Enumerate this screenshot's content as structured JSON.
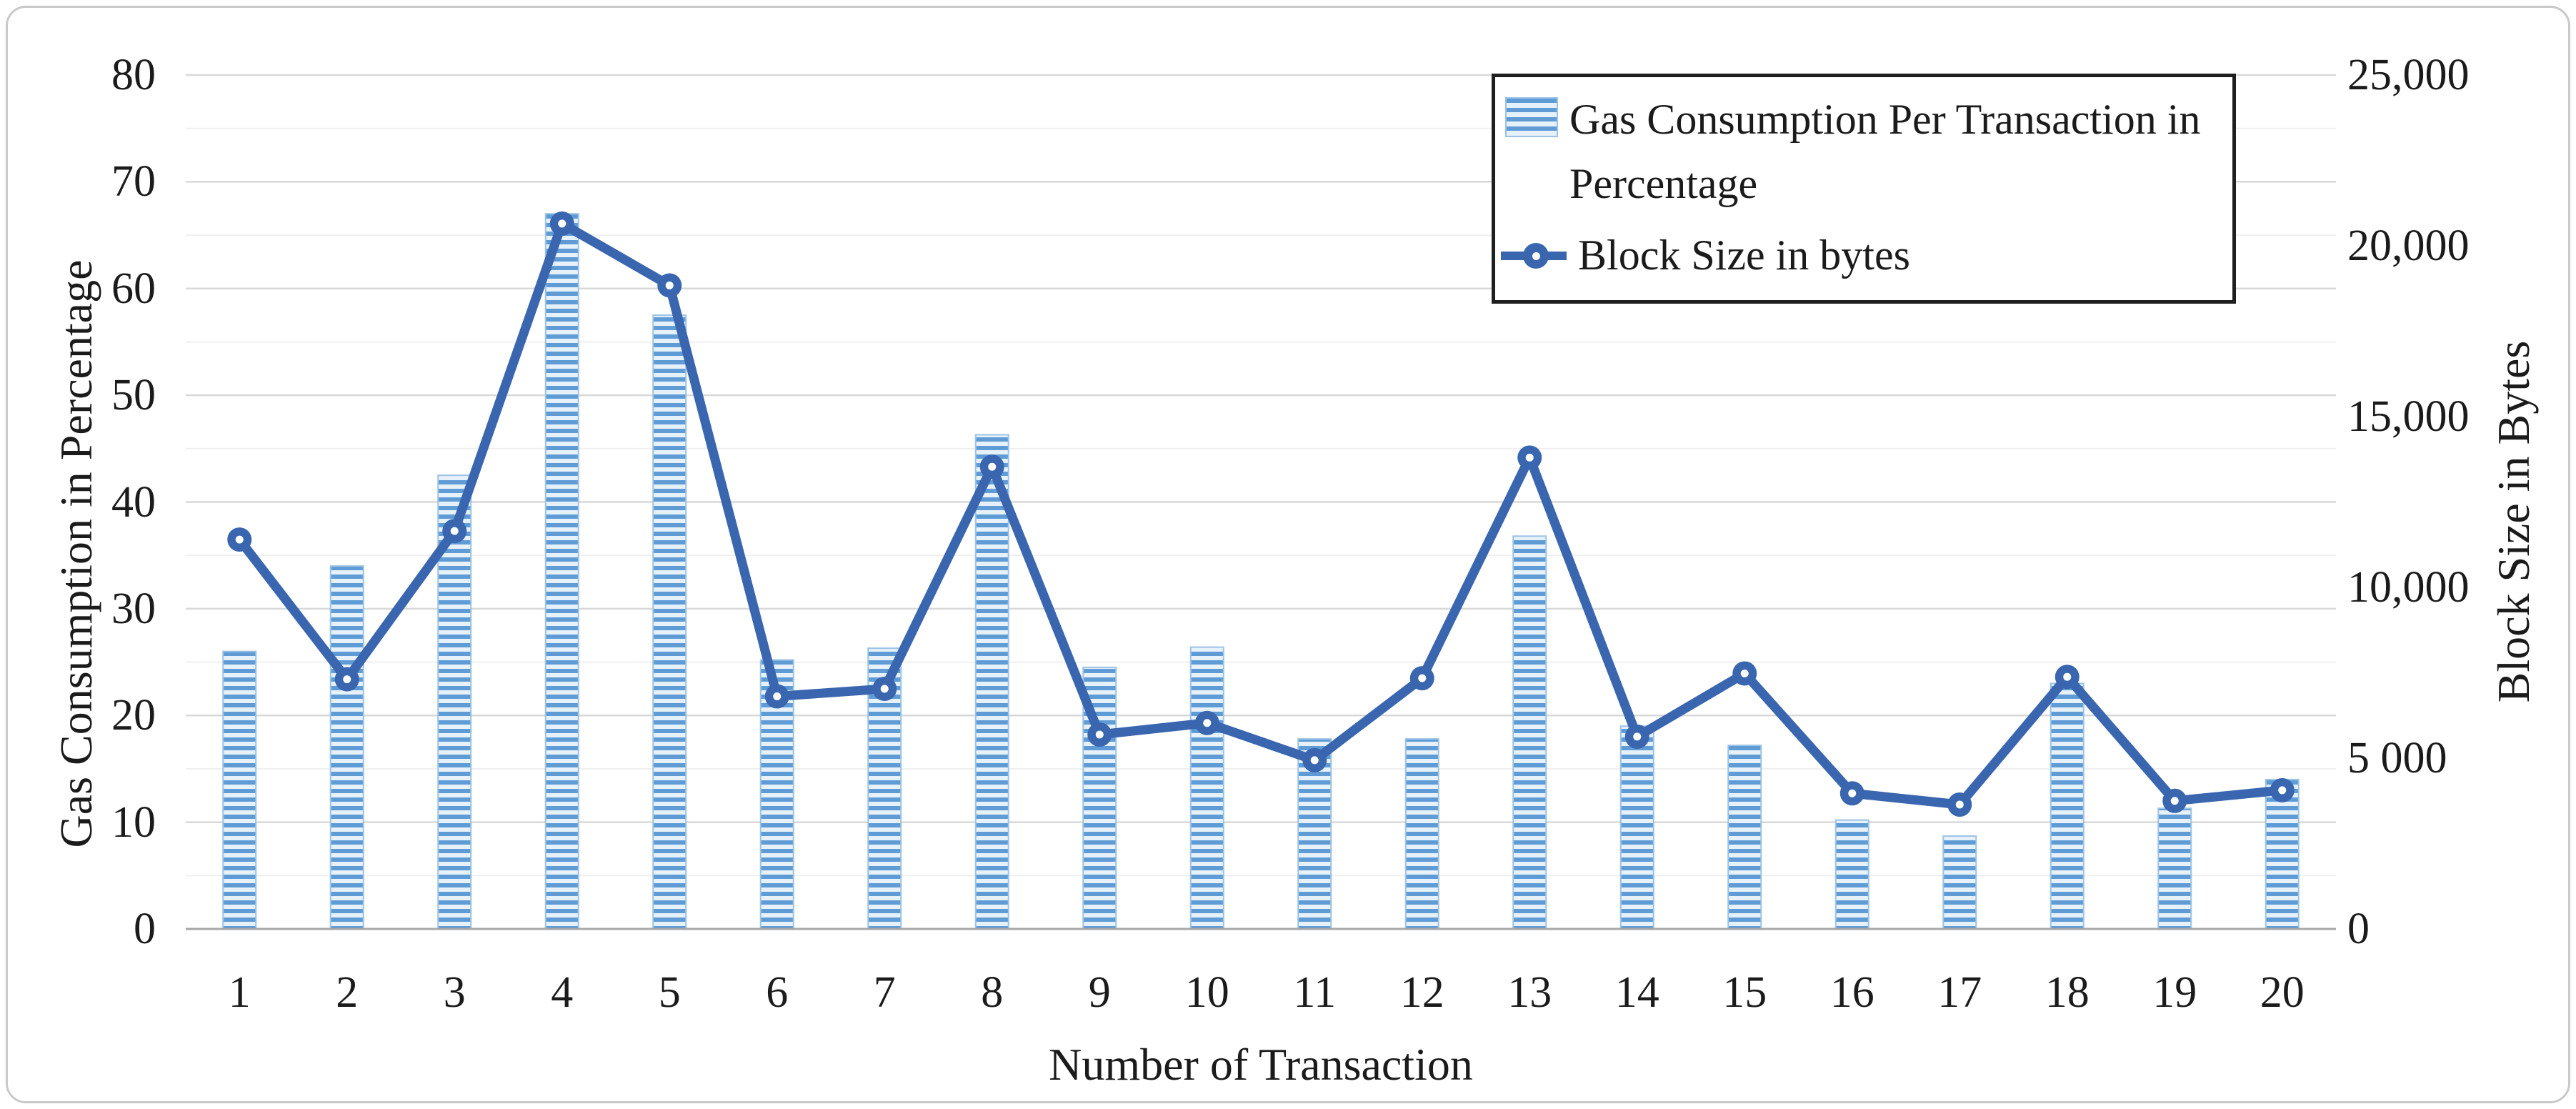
{
  "chart_data": {
    "type": "combo-bar-line",
    "title": "",
    "categories": [
      "1",
      "2",
      "3",
      "4",
      "5",
      "6",
      "7",
      "8",
      "9",
      "10",
      "11",
      "12",
      "13",
      "14",
      "15",
      "16",
      "17",
      "18",
      "19",
      "20"
    ],
    "series": [
      {
        "name": "Gas Consumption Per Transaction in Percentage",
        "type": "bar",
        "axis": "left",
        "values": [
          26,
          34,
          42.5,
          67,
          57.5,
          25.2,
          26.3,
          46.3,
          24.5,
          26.4,
          17.8,
          17.8,
          36.8,
          19,
          17.2,
          10.2,
          8.7,
          23,
          11.3,
          14
        ]
      },
      {
        "name": "Block Size in bytes",
        "type": "line",
        "axis": "right",
        "values": [
          11400,
          7310,
          11650,
          20650,
          18840,
          6810,
          7030,
          13530,
          5690,
          6030,
          4940,
          7340,
          13800,
          5630,
          7480,
          3970,
          3640,
          7380,
          3750,
          4060
        ]
      }
    ],
    "x_axis": {
      "title": "Number of Transaction",
      "tick_labels": [
        "1",
        "2",
        "3",
        "4",
        "5",
        "6",
        "7",
        "8",
        "9",
        "10",
        "11",
        "12",
        "13",
        "14",
        "15",
        "16",
        "17",
        "18",
        "19",
        "20"
      ]
    },
    "left_axis": {
      "title": "Gas Consumption in Percentage",
      "min": 0,
      "max": 80,
      "major_step": 10,
      "minor_step": 5,
      "tick_labels": [
        "0",
        "10",
        "20",
        "30",
        "40",
        "50",
        "60",
        "70",
        "80"
      ]
    },
    "right_axis": {
      "title": "Block Size in Bytes",
      "min": 0,
      "max": 25000,
      "major_step": 5000,
      "tick_labels": [
        "0",
        "5 000",
        "10,000",
        "15,000",
        "20,000",
        "25,000"
      ]
    },
    "legend": {
      "position": "top-right",
      "items": [
        {
          "label": "Gas Consumption Per Transaction in Percentage",
          "swatch": "striped-bar"
        },
        {
          "label": "Block Size in bytes",
          "swatch": "line-marker"
        }
      ]
    },
    "grid": {
      "horizontal_major": true,
      "horizontal_minor": true,
      "vertical": false
    },
    "colors": {
      "bar_stripe_dark": "#5f9cd6",
      "bar_stripe_light": "#e7f1fa",
      "bar_border": "#9cc3e5",
      "line": "#3a66b0",
      "marker_hole": "#ffffff",
      "grid_major": "#d8d8d8",
      "grid_minor": "#efefef",
      "axis_line": "#a6a6a6",
      "legend_border": "#1f1f1f",
      "text": "#1b1b1b",
      "figure_border": "#c9c9c9"
    }
  }
}
